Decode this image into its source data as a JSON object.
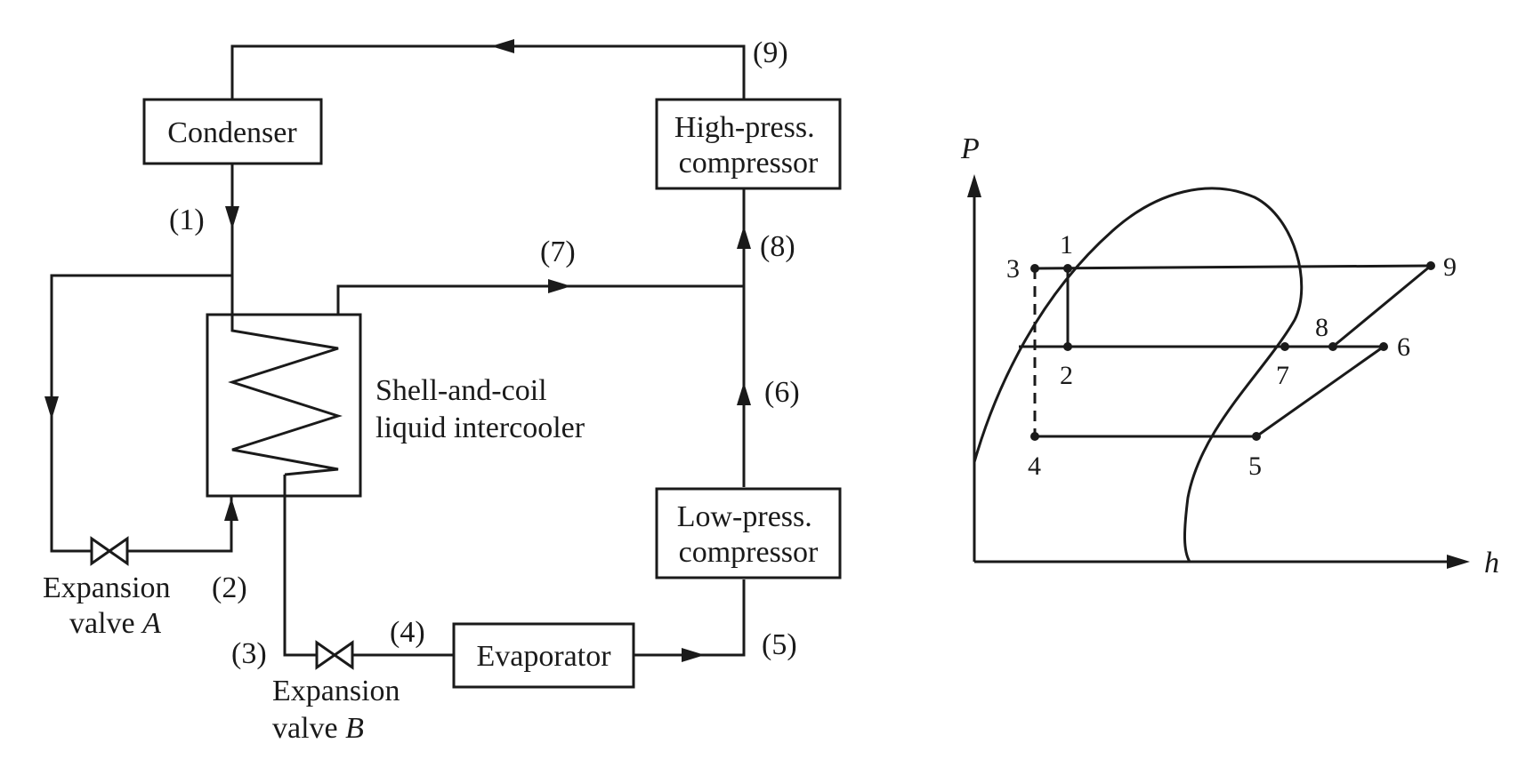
{
  "schematic": {
    "components": {
      "condenser": "Condenser",
      "hp_compressor": [
        "High-press.",
        "compressor"
      ],
      "lp_compressor": [
        "Low-press.",
        "compressor"
      ],
      "evaporator": "Evaporator",
      "intercooler": [
        "Shell-and-coil",
        "liquid intercooler"
      ],
      "valve_a": {
        "line1": "Expansion",
        "line2": "valve ",
        "letter": "A"
      },
      "valve_b": {
        "line1": "Expansion",
        "line2": "valve ",
        "letter": "B"
      }
    },
    "states": [
      "(1)",
      "(2)",
      "(3)",
      "(4)",
      "(5)",
      "(6)",
      "(7)",
      "(8)",
      "(9)"
    ]
  },
  "ph_diagram": {
    "axis_p": "P",
    "axis_h": "h",
    "points": [
      "1",
      "2",
      "3",
      "4",
      "5",
      "6",
      "7",
      "8",
      "9"
    ]
  }
}
